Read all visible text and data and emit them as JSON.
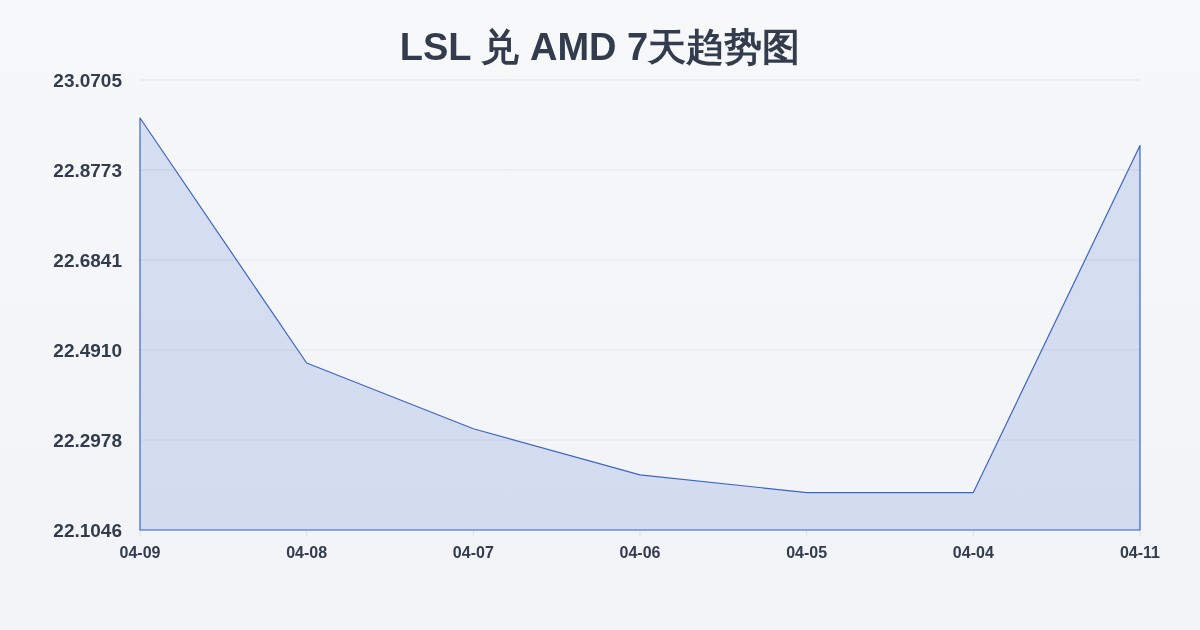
{
  "chart_data": {
    "type": "area",
    "title": "LSL 兑 AMD 7天趋势图",
    "categories": [
      "04-09",
      "04-08",
      "04-07",
      "04-06",
      "04-05",
      "04-04",
      "04-11"
    ],
    "series": [
      {
        "color": "#3d65c8",
        "values": [
          22.989,
          22.463,
          22.322,
          22.223,
          22.185,
          22.185,
          22.93
        ]
      }
    ],
    "ylim": [
      22.1046,
      23.0705
    ],
    "yticks": [
      22.1046,
      22.2978,
      {
        "value": 22.491,
        "label": "22.4910"
      },
      22.6841,
      22.8773,
      23.0705
    ],
    "grid": "y"
  }
}
